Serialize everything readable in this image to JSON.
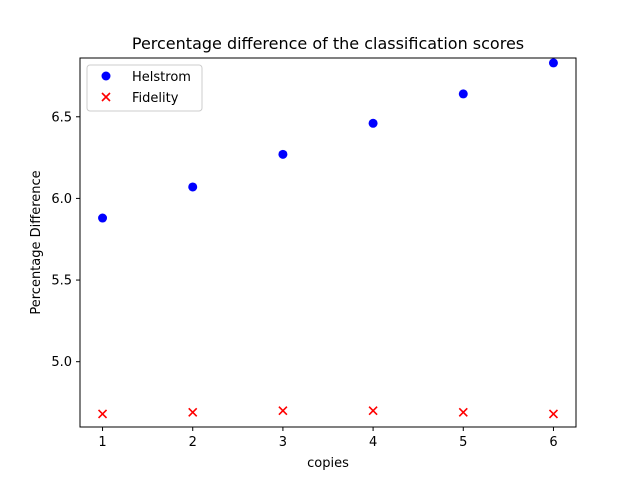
{
  "chart_data": {
    "type": "scatter",
    "title": "Percentage difference of the classification scores",
    "xlabel": "copies",
    "ylabel": "Percentage Difference",
    "xlim": [
      0.75,
      6.25
    ],
    "ylim": [
      4.6,
      6.86
    ],
    "xticks": [
      1,
      2,
      3,
      4,
      5,
      6
    ],
    "yticks": [
      5.0,
      5.5,
      6.0,
      6.5
    ],
    "ytick_labels": [
      "5.0",
      "5.5",
      "6.0",
      "6.5"
    ],
    "grid": false,
    "legend": "top-left",
    "series": [
      {
        "name": "Helstrom",
        "marker": "circle",
        "color": "#0000ff",
        "x": [
          1,
          2,
          3,
          4,
          5,
          6
        ],
        "y": [
          5.88,
          6.07,
          6.27,
          6.46,
          6.64,
          6.83
        ]
      },
      {
        "name": "Fidelity",
        "marker": "x",
        "color": "#ff0000",
        "x": [
          1,
          2,
          3,
          4,
          5,
          6
        ],
        "y": [
          4.68,
          4.69,
          4.7,
          4.7,
          4.69,
          4.68
        ]
      }
    ]
  }
}
